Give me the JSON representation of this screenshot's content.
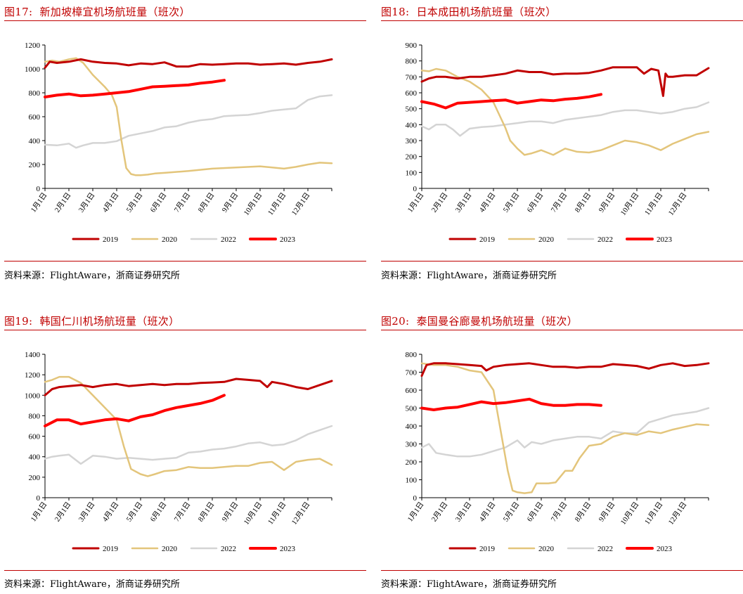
{
  "chart_data": [
    {
      "type": "line",
      "label": "图17:",
      "title": "新加坡樟宜机场航班量（班次）",
      "source": "资料来源：FlightAware，浙商证券研究所",
      "categories": [
        "1月1日",
        "2月1日",
        "3月1日",
        "4月1日",
        "5月1日",
        "6月1日",
        "7月1日",
        "8月1日",
        "9月1日",
        "10月1日",
        "11月1日",
        "12月1日"
      ],
      "yticks": [
        "0",
        "200",
        "400",
        "600",
        "800",
        "1000",
        "1200"
      ],
      "ylim": [
        0,
        1200
      ],
      "colors": {
        "2019": "#c00000",
        "2020": "#e3c57b",
        "2022": "#d4d4d4",
        "2023": "#ff0000"
      },
      "series": [
        {
          "name": "2019",
          "x": [
            0,
            0.2,
            0.5,
            1,
            1.5,
            2,
            2.5,
            3,
            3.5,
            4,
            4.5,
            5,
            5.5,
            6,
            6.5,
            7,
            7.5,
            8,
            8.5,
            9,
            9.5,
            10,
            10.5,
            11,
            11.5,
            12
          ],
          "values": [
            1010,
            1060,
            1050,
            1060,
            1080,
            1060,
            1050,
            1045,
            1030,
            1045,
            1040,
            1055,
            1020,
            1020,
            1040,
            1035,
            1040,
            1045,
            1045,
            1035,
            1040,
            1045,
            1035,
            1050,
            1060,
            1080
          ]
        },
        {
          "name": "2020",
          "x": [
            0,
            0.3,
            0.6,
            1,
            1.3,
            1.6,
            2,
            2.5,
            2.8,
            3,
            3.2,
            3.4,
            3.6,
            3.8,
            4,
            4.3,
            4.6,
            5,
            6,
            7,
            8,
            9,
            10,
            10.5,
            11,
            11.5,
            12
          ],
          "values": [
            1060,
            1070,
            1060,
            1080,
            1090,
            1050,
            950,
            850,
            780,
            680,
            400,
            170,
            120,
            110,
            110,
            115,
            125,
            130,
            145,
            165,
            175,
            185,
            165,
            180,
            200,
            215,
            210
          ]
        },
        {
          "name": "2022",
          "x": [
            0,
            0.5,
            1,
            1.3,
            1.6,
            2,
            2.5,
            3,
            3.5,
            4,
            4.5,
            5,
            5.5,
            6,
            6.5,
            7,
            7.5,
            8,
            8.5,
            9,
            9.5,
            10,
            10.5,
            11,
            11.5,
            12
          ],
          "values": [
            365,
            360,
            375,
            340,
            360,
            380,
            380,
            395,
            440,
            460,
            480,
            510,
            520,
            550,
            570,
            580,
            605,
            610,
            615,
            630,
            650,
            660,
            670,
            740,
            770,
            780
          ]
        },
        {
          "name": "2023",
          "x": [
            0,
            0.5,
            1,
            1.5,
            2,
            2.5,
            3,
            3.5,
            4,
            4.5,
            5,
            5.5,
            6,
            6.5,
            7,
            7.5
          ],
          "values": [
            765,
            780,
            790,
            775,
            780,
            790,
            800,
            810,
            830,
            850,
            855,
            860,
            865,
            880,
            890,
            905
          ]
        }
      ]
    },
    {
      "type": "line",
      "label": "图18:",
      "title": "日本成田机场航班量（班次）",
      "source": "资料来源：FlightAware，浙商证券研究所",
      "categories": [
        "1月1日",
        "2月1日",
        "3月1日",
        "4月1日",
        "5月1日",
        "6月1日",
        "7月1日",
        "8月1日",
        "9月1日",
        "10月1日",
        "11月1日",
        "12月1日"
      ],
      "yticks": [
        "0",
        "100",
        "200",
        "300",
        "400",
        "500",
        "600",
        "700",
        "800",
        "900"
      ],
      "ylim": [
        0,
        900
      ],
      "colors": {
        "2019": "#c00000",
        "2020": "#e3c57b",
        "2022": "#d4d4d4",
        "2023": "#ff0000"
      },
      "series": [
        {
          "name": "2019",
          "x": [
            0,
            0.3,
            0.6,
            1,
            1.5,
            2,
            2.5,
            3,
            3.5,
            4,
            4.5,
            5,
            5.5,
            6,
            6.5,
            7,
            7.5,
            8,
            8.5,
            9,
            9.3,
            9.6,
            9.9,
            10.1,
            10.2,
            10.3,
            10.4,
            10.5,
            11,
            11.5,
            12
          ],
          "values": [
            670,
            690,
            700,
            700,
            690,
            700,
            700,
            710,
            720,
            740,
            730,
            730,
            715,
            720,
            720,
            725,
            740,
            760,
            760,
            760,
            720,
            750,
            740,
            580,
            720,
            700,
            700,
            700,
            710,
            710,
            755
          ]
        },
        {
          "name": "2020",
          "x": [
            0,
            0.3,
            0.6,
            1,
            1.5,
            2,
            2.5,
            3,
            3.5,
            3.7,
            4,
            4.3,
            4.6,
            5,
            5.5,
            6,
            6.5,
            7,
            7.5,
            8,
            8.5,
            9,
            9.5,
            10,
            10.5,
            11,
            11.5,
            12
          ],
          "values": [
            740,
            735,
            750,
            740,
            700,
            670,
            620,
            540,
            380,
            300,
            250,
            210,
            220,
            240,
            210,
            250,
            230,
            225,
            240,
            270,
            300,
            290,
            270,
            240,
            280,
            310,
            340,
            355
          ]
        },
        {
          "name": "2022",
          "x": [
            0,
            0.3,
            0.6,
            1,
            1.3,
            1.6,
            2,
            2.5,
            3,
            3.5,
            4,
            4.5,
            5,
            5.5,
            6,
            6.5,
            7,
            7.5,
            8,
            8.5,
            9,
            9.5,
            10,
            10.5,
            11,
            11.5,
            12
          ],
          "values": [
            390,
            370,
            400,
            400,
            370,
            330,
            375,
            385,
            390,
            400,
            410,
            420,
            420,
            410,
            430,
            440,
            450,
            460,
            480,
            490,
            490,
            480,
            470,
            480,
            500,
            510,
            540
          ]
        },
        {
          "name": "2023",
          "x": [
            0,
            0.5,
            1,
            1.5,
            2,
            2.5,
            3,
            3.5,
            4,
            4.5,
            5,
            5.5,
            6,
            6.5,
            7,
            7.5
          ],
          "values": [
            545,
            530,
            505,
            535,
            540,
            545,
            550,
            555,
            535,
            545,
            555,
            550,
            560,
            565,
            575,
            590
          ]
        }
      ]
    },
    {
      "type": "line",
      "label": "图19:",
      "title": "韩国仁川机场航班量（班次）",
      "source": "资料来源：FlightAware，浙商证券研究所",
      "categories": [
        "1月1日",
        "2月1日",
        "3月1日",
        "4月1日",
        "5月1日",
        "6月1日",
        "7月1日",
        "8月1日",
        "9月1日",
        "10月1日",
        "11月1日",
        "12月1日"
      ],
      "yticks": [
        "0",
        "200",
        "400",
        "600",
        "800",
        "1000",
        "1200",
        "1400"
      ],
      "ylim": [
        0,
        1400
      ],
      "colors": {
        "2019": "#c00000",
        "2020": "#e3c57b",
        "2022": "#d4d4d4",
        "2023": "#ff0000"
      },
      "series": [
        {
          "name": "2019",
          "x": [
            0,
            0.3,
            0.6,
            1,
            1.5,
            2,
            2.5,
            3,
            3.5,
            4,
            4.5,
            5,
            5.5,
            6,
            6.5,
            7,
            7.5,
            8,
            8.5,
            9,
            9.3,
            9.5,
            10,
            10.5,
            11,
            11.5,
            12
          ],
          "values": [
            1000,
            1060,
            1080,
            1090,
            1100,
            1080,
            1100,
            1110,
            1090,
            1100,
            1110,
            1100,
            1110,
            1110,
            1120,
            1125,
            1130,
            1160,
            1150,
            1140,
            1080,
            1130,
            1110,
            1080,
            1060,
            1100,
            1140
          ]
        },
        {
          "name": "2020",
          "x": [
            0,
            0.3,
            0.6,
            1,
            1.5,
            2,
            2.5,
            3,
            3.3,
            3.6,
            4,
            4.3,
            4.6,
            5,
            5.5,
            6,
            6.5,
            7,
            7.5,
            8,
            8.5,
            9,
            9.5,
            10,
            10.5,
            11,
            11.5,
            12
          ],
          "values": [
            1130,
            1150,
            1180,
            1180,
            1120,
            1000,
            880,
            760,
            500,
            280,
            230,
            210,
            230,
            260,
            270,
            300,
            290,
            290,
            300,
            310,
            310,
            340,
            350,
            270,
            350,
            370,
            380,
            320
          ]
        },
        {
          "name": "2022",
          "x": [
            0,
            0.3,
            0.6,
            1,
            1.5,
            2,
            2.5,
            3,
            3.5,
            4,
            4.5,
            5,
            5.5,
            6,
            6.5,
            7,
            7.5,
            8,
            8.5,
            9,
            9.5,
            10,
            10.5,
            11,
            11.5,
            12
          ],
          "values": [
            380,
            400,
            410,
            420,
            330,
            410,
            400,
            380,
            390,
            380,
            370,
            380,
            390,
            440,
            450,
            470,
            480,
            500,
            530,
            540,
            510,
            520,
            560,
            620,
            660,
            700
          ]
        },
        {
          "name": "2023",
          "x": [
            0,
            0.5,
            1,
            1.5,
            2,
            2.5,
            3,
            3.5,
            4,
            4.5,
            5,
            5.5,
            6,
            6.5,
            7,
            7.5
          ],
          "values": [
            700,
            760,
            760,
            720,
            740,
            760,
            770,
            750,
            790,
            810,
            850,
            880,
            900,
            920,
            950,
            1000
          ]
        }
      ]
    },
    {
      "type": "line",
      "label": "图20:",
      "title": "泰国曼谷廊曼机场航班量（班次）",
      "source": "资料来源：FlightAware，浙商证券研究所",
      "categories": [
        "1月1日",
        "2月1日",
        "3月1日",
        "4月1日",
        "5月1日",
        "6月1日",
        "7月1日",
        "8月1日",
        "9月1日",
        "10月1日",
        "11月1日",
        "12月1日"
      ],
      "yticks": [
        "0",
        "100",
        "200",
        "300",
        "400",
        "500",
        "600",
        "700",
        "800"
      ],
      "ylim": [
        0,
        800
      ],
      "colors": {
        "2019": "#c00000",
        "2020": "#e3c57b",
        "2022": "#d4d4d4",
        "2023": "#ff0000"
      },
      "series": [
        {
          "name": "2019",
          "x": [
            0,
            0.2,
            0.5,
            1,
            1.5,
            2,
            2.5,
            2.7,
            3,
            3.5,
            4,
            4.5,
            5,
            5.5,
            6,
            6.5,
            7,
            7.5,
            8,
            8.5,
            9,
            9.5,
            10,
            10.5,
            11,
            11.5,
            12
          ],
          "values": [
            680,
            740,
            750,
            750,
            745,
            740,
            735,
            710,
            730,
            740,
            745,
            750,
            740,
            730,
            730,
            725,
            730,
            730,
            745,
            740,
            735,
            720,
            740,
            750,
            735,
            740,
            750
          ]
        },
        {
          "name": "2020",
          "x": [
            0,
            0.5,
            1,
            1.5,
            2,
            2.5,
            3,
            3.2,
            3.4,
            3.6,
            3.8,
            4,
            4.3,
            4.6,
            4.8,
            5,
            5.3,
            5.6,
            6,
            6.3,
            6.6,
            7,
            7.5,
            8,
            8.5,
            9,
            9.5,
            10,
            10.5,
            11,
            11.5,
            12
          ],
          "values": [
            750,
            740,
            740,
            730,
            710,
            700,
            600,
            450,
            300,
            150,
            40,
            30,
            25,
            30,
            80,
            80,
            80,
            85,
            150,
            150,
            220,
            290,
            300,
            340,
            360,
            350,
            370,
            360,
            380,
            395,
            410,
            405
          ]
        },
        {
          "name": "2022",
          "x": [
            0,
            0.3,
            0.6,
            1,
            1.5,
            2,
            2.5,
            3,
            3.5,
            4,
            4.3,
            4.6,
            5,
            5.5,
            6,
            6.5,
            7,
            7.5,
            8,
            8.5,
            9,
            9.5,
            10,
            10.5,
            11,
            11.5,
            12
          ],
          "values": [
            280,
            300,
            250,
            240,
            230,
            230,
            240,
            260,
            280,
            320,
            280,
            310,
            300,
            320,
            330,
            340,
            340,
            330,
            370,
            360,
            360,
            420,
            440,
            460,
            470,
            480,
            500
          ]
        },
        {
          "name": "2023",
          "x": [
            0,
            0.5,
            1,
            1.5,
            2,
            2.5,
            3,
            3.5,
            4,
            4.5,
            5,
            5.5,
            6,
            6.5,
            7,
            7.5
          ],
          "values": [
            500,
            490,
            500,
            505,
            520,
            535,
            525,
            530,
            540,
            550,
            525,
            515,
            515,
            520,
            520,
            515
          ]
        }
      ]
    }
  ]
}
